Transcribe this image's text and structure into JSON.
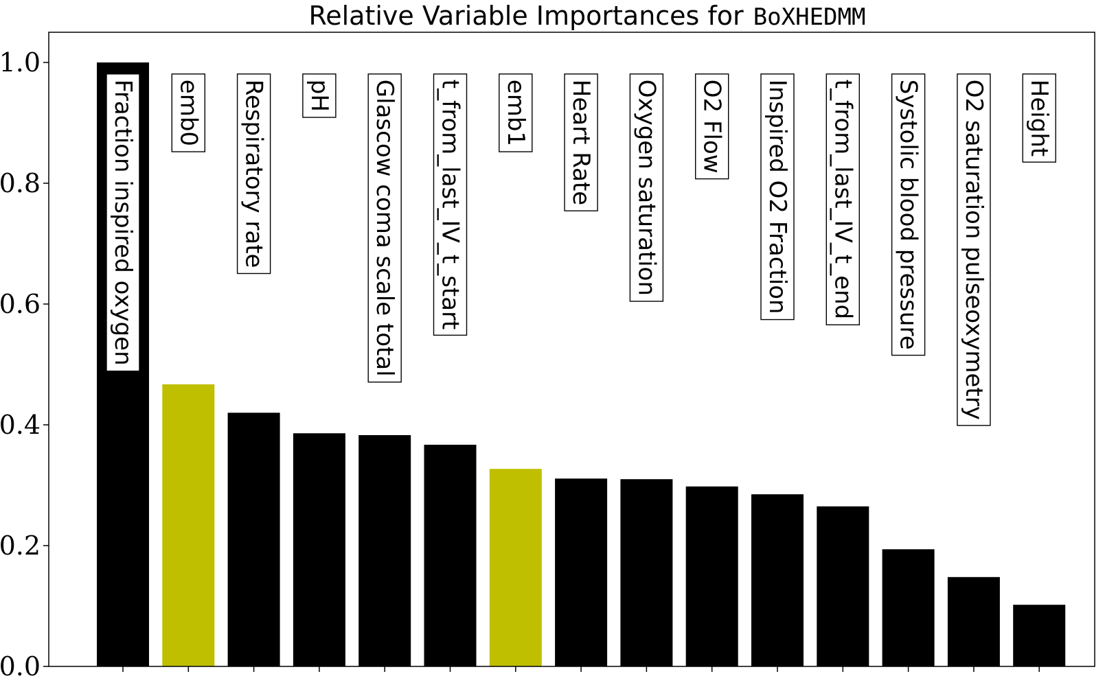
{
  "chart_data": {
    "type": "bar",
    "title": "Relative Variable Importances for",
    "title_model": "BoXHEDMM",
    "xlabel": "",
    "ylabel": "",
    "ylim": [
      0,
      1.05
    ],
    "yticks": [
      0.0,
      0.2,
      0.4,
      0.6,
      0.8,
      1.0
    ],
    "ytick_labels": [
      "0.0",
      "0.2",
      "0.4",
      "0.6",
      "0.8",
      "1.0"
    ],
    "grid": false,
    "bar_labels_inside_boxes": true,
    "categories": [
      "Fraction inspired oxygen",
      "emb0",
      "Respiratory rate",
      "pH",
      "Glascow coma scale total",
      "t_from_last_IV_t_start",
      "emb1",
      "Heart Rate",
      "Oxygen saturation",
      "O2 Flow",
      "Inspired O2 Fraction",
      "t_from_last_IV_t_end",
      "Systolic blood pressure",
      "O2 saturation pulseoxymetry",
      "Height"
    ],
    "values": [
      1.0,
      0.467,
      0.42,
      0.386,
      0.383,
      0.367,
      0.327,
      0.311,
      0.31,
      0.298,
      0.285,
      0.265,
      0.194,
      0.148,
      0.102
    ],
    "colors": [
      "#000000",
      "#bfbf00",
      "#000000",
      "#000000",
      "#000000",
      "#000000",
      "#bfbf00",
      "#000000",
      "#000000",
      "#000000",
      "#000000",
      "#000000",
      "#000000",
      "#000000",
      "#000000"
    ],
    "label_box_fill": [
      "#ffffff",
      "#ffffff",
      "#ffffff",
      "#ffffff",
      "#ffffff",
      "#ffffff",
      "#ffffff",
      "#ffffff",
      "#ffffff",
      "#ffffff",
      "#ffffff",
      "#ffffff",
      "#ffffff",
      "#ffffff",
      "#ffffff"
    ],
    "label_box_border": [
      "#000000",
      "#000000",
      "#000000",
      "#000000",
      "#000000",
      "#000000",
      "#000000",
      "#000000",
      "#000000",
      "#000000",
      "#000000",
      "#000000",
      "#000000",
      "#000000",
      "#000000"
    ]
  }
}
